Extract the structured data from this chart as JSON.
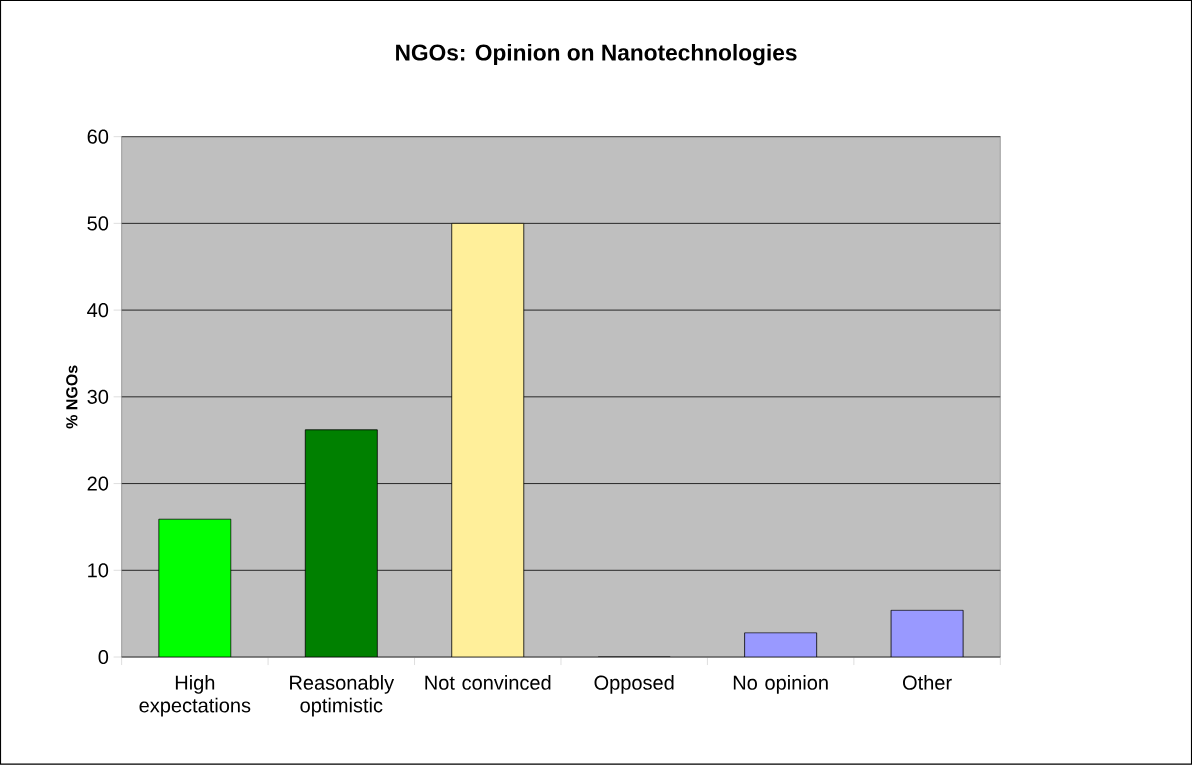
{
  "chart_data": {
    "type": "bar",
    "title": "NGOs: Opinion on Nanotechnologies",
    "ylabel": "% NGOs",
    "categories": [
      "High expectations",
      "Reasonably optimistic",
      "Not convinced",
      "Opposed",
      "No opinion",
      "Other"
    ],
    "values": [
      15.9,
      26.2,
      50,
      0,
      2.8,
      5.4
    ],
    "colors": [
      "#00ff00",
      "#008000",
      "#ffef9a",
      "#9999ff",
      "#9999ff",
      "#9999ff"
    ],
    "ylim": [
      0,
      60
    ],
    "yticks": [
      0,
      10,
      20,
      30,
      40,
      50,
      60
    ],
    "grid": "y"
  }
}
